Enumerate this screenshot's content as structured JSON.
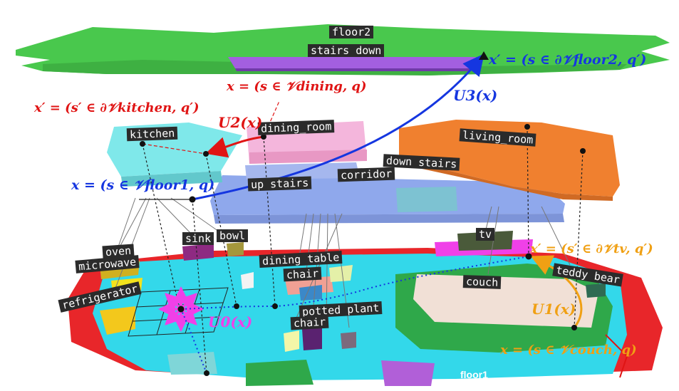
{
  "labels": {
    "floor2": "floor2",
    "stairs_down": "stairs down",
    "kitchen": "kitchen",
    "dining_room": "dining_room",
    "living_room": "living_room",
    "down_stairs": "down stairs",
    "corridor": "corridor",
    "up_stairs": "up stairs",
    "sink": "sink",
    "bowl": "bowl",
    "tv": "tv",
    "oven": "oven",
    "microwave": "microwave",
    "dining_table": "dining table",
    "chair_upper": "chair",
    "refrigerator": "refrigerator",
    "potted_plant": "potted plant",
    "chair_lower": "chair",
    "couch": "couch",
    "teddy_bear": "teddy bear",
    "floor1": "floor1"
  },
  "equations": {
    "x_floor2": "x′ = (s ∈ ∂𝒱floor2, q′)",
    "x_dining": "x = (s ∈ 𝒱dining, q)",
    "x_kitchen": "x′ = (s′ ∈ ∂𝒱kitchen, q′)",
    "x_floor1": "x = (s ∈ 𝒱floor1, q)",
    "x_tv": "x′ = (s′ ∈ ∂𝒱tv, q′)",
    "x_couch": "x = (s ∈ 𝒱couch, q)"
  },
  "operators": {
    "U0": "U0(x)",
    "U1": "U1(x)",
    "U2": "U2(x)",
    "U3": "U3(x)"
  },
  "colors": {
    "floor2": "#49c84d",
    "stairs_down": "#a35fe0",
    "kitchen": "#7fe8ea",
    "dining_room": "#f4b6dc",
    "living_room": "#f0802f",
    "floor1_region": "#8fa8ec",
    "ground": "#33d8ea",
    "ground_border": "#e8262a",
    "eq_blue": "#1536e0",
    "eq_red": "#e01414",
    "eq_orange": "#f0a014",
    "magenta": "#f040e8"
  }
}
